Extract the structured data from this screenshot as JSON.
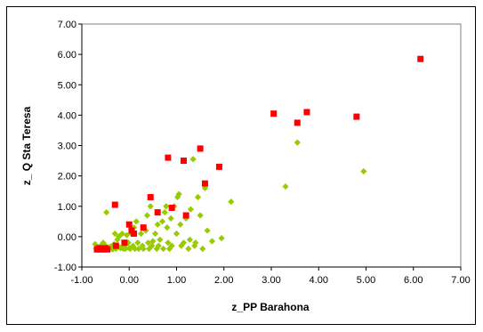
{
  "chart_data": {
    "type": "scatter",
    "title": "",
    "xlabel": "z_PP Barahona",
    "ylabel": "z_ Q Sta Teresa",
    "xlim": [
      -1,
      7
    ],
    "ylim": [
      -1,
      7
    ],
    "x_ticks": [
      "-1.00",
      "0.00",
      "1.00",
      "2.00",
      "3.00",
      "4.00",
      "5.00",
      "6.00",
      "7.00"
    ],
    "y_ticks": [
      "-1.00",
      "0.00",
      "1.00",
      "2.00",
      "3.00",
      "4.00",
      "5.00",
      "6.00",
      "7.00"
    ],
    "legend": "none",
    "grid": false,
    "series": [
      {
        "marker": "diamond",
        "color": "#99cc00",
        "points": [
          [
            -0.72,
            -0.25
          ],
          [
            -0.7,
            -0.4
          ],
          [
            -0.68,
            -0.38
          ],
          [
            -0.66,
            -0.42
          ],
          [
            -0.64,
            -0.35
          ],
          [
            -0.6,
            -0.3
          ],
          [
            -0.58,
            -0.38
          ],
          [
            -0.55,
            -0.2
          ],
          [
            -0.52,
            -0.4
          ],
          [
            -0.5,
            -0.3
          ],
          [
            -0.48,
            0.8
          ],
          [
            -0.45,
            -0.4
          ],
          [
            -0.42,
            -0.35
          ],
          [
            -0.38,
            -0.32
          ],
          [
            -0.35,
            -0.42
          ],
          [
            -0.32,
            -0.25
          ],
          [
            -0.3,
            0.1
          ],
          [
            -0.28,
            -0.4
          ],
          [
            -0.25,
            -0.1
          ],
          [
            -0.22,
            0.0
          ],
          [
            -0.2,
            -0.35
          ],
          [
            -0.18,
            -0.38
          ],
          [
            -0.15,
            0.1
          ],
          [
            -0.12,
            -0.4
          ],
          [
            -0.1,
            -0.3
          ],
          [
            -0.08,
            -0.4
          ],
          [
            -0.05,
            0.05
          ],
          [
            -0.02,
            -0.2
          ],
          [
            0.0,
            -0.38
          ],
          [
            0.02,
            -0.4
          ],
          [
            0.05,
            0.1
          ],
          [
            0.08,
            -0.3
          ],
          [
            0.1,
            0.3
          ],
          [
            0.12,
            -0.4
          ],
          [
            0.15,
            0.5
          ],
          [
            0.18,
            -0.2
          ],
          [
            0.2,
            -0.4
          ],
          [
            0.25,
            0.1
          ],
          [
            0.28,
            -0.3
          ],
          [
            0.3,
            -0.4
          ],
          [
            0.35,
            0.2
          ],
          [
            0.38,
            0.7
          ],
          [
            0.4,
            -0.2
          ],
          [
            0.42,
            -0.4
          ],
          [
            0.45,
            1.0
          ],
          [
            0.48,
            -0.3
          ],
          [
            0.5,
            -0.15
          ],
          [
            0.55,
            0.1
          ],
          [
            0.58,
            -0.4
          ],
          [
            0.6,
            0.4
          ],
          [
            0.62,
            -0.3
          ],
          [
            0.65,
            -0.1
          ],
          [
            0.7,
            0.5
          ],
          [
            0.72,
            -0.4
          ],
          [
            0.75,
            0.8
          ],
          [
            0.78,
            1.0
          ],
          [
            0.8,
            0.3
          ],
          [
            0.82,
            -0.2
          ],
          [
            0.85,
            -0.4
          ],
          [
            0.88,
            0.6
          ],
          [
            0.9,
            -0.3
          ],
          [
            0.95,
            1.0
          ],
          [
            1.0,
            0.1
          ],
          [
            1.02,
            1.3
          ],
          [
            1.05,
            1.4
          ],
          [
            1.08,
            0.4
          ],
          [
            1.1,
            -0.3
          ],
          [
            1.15,
            -0.2
          ],
          [
            1.2,
            0.6
          ],
          [
            1.25,
            -0.4
          ],
          [
            1.28,
            -0.1
          ],
          [
            1.3,
            0.9
          ],
          [
            1.35,
            2.55
          ],
          [
            1.38,
            -0.3
          ],
          [
            1.4,
            -0.2
          ],
          [
            1.45,
            1.3
          ],
          [
            1.5,
            0.7
          ],
          [
            1.55,
            -0.4
          ],
          [
            1.6,
            1.6
          ],
          [
            1.65,
            0.2
          ],
          [
            1.75,
            -0.15
          ],
          [
            1.95,
            -0.05
          ],
          [
            2.15,
            1.15
          ],
          [
            3.3,
            1.65
          ],
          [
            3.55,
            3.1
          ],
          [
            4.95,
            2.15
          ]
        ]
      },
      {
        "marker": "square",
        "color": "#ff0000",
        "points": [
          [
            -0.68,
            -0.42
          ],
          [
            -0.64,
            -0.38
          ],
          [
            -0.62,
            -0.42
          ],
          [
            -0.58,
            -0.4
          ],
          [
            -0.55,
            -0.42
          ],
          [
            -0.5,
            -0.38
          ],
          [
            -0.46,
            -0.42
          ],
          [
            -0.3,
            1.05
          ],
          [
            -0.28,
            -0.3
          ],
          [
            -0.1,
            -0.2
          ],
          [
            0.0,
            0.4
          ],
          [
            0.05,
            0.2
          ],
          [
            0.1,
            0.1
          ],
          [
            0.3,
            0.3
          ],
          [
            0.45,
            1.3
          ],
          [
            0.6,
            0.8
          ],
          [
            0.82,
            2.6
          ],
          [
            0.9,
            0.95
          ],
          [
            1.15,
            2.5
          ],
          [
            1.2,
            0.7
          ],
          [
            1.5,
            2.9
          ],
          [
            1.6,
            1.75
          ],
          [
            1.9,
            2.3
          ],
          [
            3.05,
            4.05
          ],
          [
            3.55,
            3.75
          ],
          [
            3.75,
            4.1
          ],
          [
            4.8,
            3.95
          ],
          [
            6.15,
            5.85
          ]
        ]
      }
    ]
  }
}
